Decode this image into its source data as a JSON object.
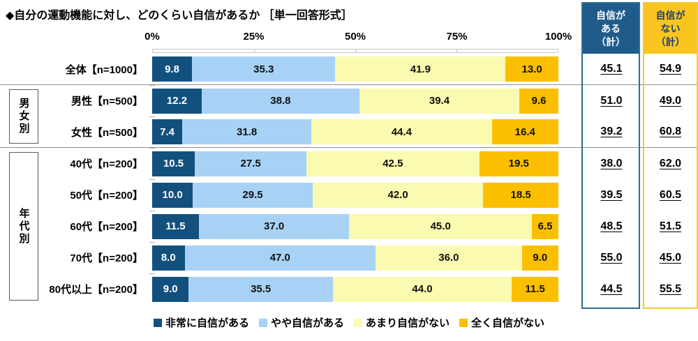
{
  "title": "◆自分の運動機能に対し、どのくらい自信があるか ［単一回答形式］",
  "axis_ticks": [
    "0%",
    "25%",
    "50%",
    "75%",
    "100%"
  ],
  "summary_columns": [
    {
      "title_lines": [
        "自信が",
        "ある",
        "（計）"
      ],
      "header_bg": "#1f5c8c",
      "header_text": "#ffffff",
      "border": "#2e6e96"
    },
    {
      "title_lines": [
        "自信が",
        "ない",
        "（計）"
      ],
      "header_bg": "#fac51e",
      "header_text": "#15406e",
      "border": "#f2ca30"
    }
  ],
  "groups": [
    {
      "label": "男女別",
      "start": 1,
      "end": 2
    },
    {
      "label": "年代別",
      "start": 3,
      "end": 7
    }
  ],
  "legend": [
    {
      "label": "非常に自信がある",
      "color": "#12517e"
    },
    {
      "label": "やや自信がある",
      "color": "#a8d2f5"
    },
    {
      "label": "あまり自信がない",
      "color": "#fafab0"
    },
    {
      "label": "全く自信がない",
      "color": "#fcbf00"
    }
  ],
  "rows": [
    {
      "label": "全体【n=1000】",
      "values": [
        "9.8",
        "35.3",
        "41.9",
        "13.0"
      ],
      "sum_yes": "45.1",
      "sum_no": "54.9"
    },
    {
      "label": "男性【n=500】",
      "values": [
        "12.2",
        "38.8",
        "39.4",
        "9.6"
      ],
      "sum_yes": "51.0",
      "sum_no": "49.0"
    },
    {
      "label": "女性【n=500】",
      "values": [
        "7.4",
        "31.8",
        "44.4",
        "16.4"
      ],
      "sum_yes": "39.2",
      "sum_no": "60.8"
    },
    {
      "label": "40代【n=200】",
      "values": [
        "10.5",
        "27.5",
        "42.5",
        "19.5"
      ],
      "sum_yes": "38.0",
      "sum_no": "62.0"
    },
    {
      "label": "50代【n=200】",
      "values": [
        "10.0",
        "29.5",
        "42.0",
        "18.5"
      ],
      "sum_yes": "39.5",
      "sum_no": "60.5"
    },
    {
      "label": "60代【n=200】",
      "values": [
        "11.5",
        "37.0",
        "45.0",
        "6.5"
      ],
      "sum_yes": "48.5",
      "sum_no": "51.5"
    },
    {
      "label": "70代【n=200】",
      "values": [
        "8.0",
        "47.0",
        "36.0",
        "9.0"
      ],
      "sum_yes": "55.0",
      "sum_no": "45.0"
    },
    {
      "label": "80代以上【n=200】",
      "values": [
        "9.0",
        "35.5",
        "44.0",
        "11.5"
      ],
      "sum_yes": "44.5",
      "sum_no": "55.5"
    }
  ],
  "chart_data": {
    "type": "bar",
    "subtype": "horizontal-stacked-100pct",
    "title": "◆自分の運動機能に対し、どのくらい自信があるか ［単一回答形式］",
    "categories": [
      "全体【n=1000】",
      "男性【n=500】",
      "女性【n=500】",
      "40代【n=200】",
      "50代【n=200】",
      "60代【n=200】",
      "70代【n=200】",
      "80代以上【n=200】"
    ],
    "category_groups": [
      {
        "label": "男女別",
        "categories": [
          "男性【n=500】",
          "女性【n=500】"
        ]
      },
      {
        "label": "年代別",
        "categories": [
          "40代【n=200】",
          "50代【n=200】",
          "60代【n=200】",
          "70代【n=200】",
          "80代以上【n=200】"
        ]
      }
    ],
    "series": [
      {
        "name": "非常に自信がある",
        "color": "#12517e",
        "values": [
          9.8,
          12.2,
          7.4,
          10.5,
          10.0,
          11.5,
          8.0,
          9.0
        ]
      },
      {
        "name": "やや自信がある",
        "color": "#a8d2f5",
        "values": [
          35.3,
          38.8,
          31.8,
          27.5,
          29.5,
          37.0,
          47.0,
          35.5
        ]
      },
      {
        "name": "あまり自信がない",
        "color": "#fafab0",
        "values": [
          41.9,
          39.4,
          44.4,
          42.5,
          42.0,
          45.0,
          36.0,
          44.0
        ]
      },
      {
        "name": "全く自信がない",
        "color": "#fcbf00",
        "values": [
          13.0,
          9.6,
          16.4,
          19.5,
          18.5,
          6.5,
          9.0,
          11.5
        ]
      }
    ],
    "totals": [
      {
        "name": "自信がある（計）",
        "values": [
          45.1,
          51.0,
          39.2,
          38.0,
          39.5,
          48.5,
          55.0,
          44.5
        ]
      },
      {
        "name": "自信がない（計）",
        "values": [
          54.9,
          49.0,
          60.8,
          62.0,
          60.5,
          51.5,
          45.0,
          55.5
        ]
      }
    ],
    "xlim": [
      0,
      100
    ],
    "x_ticks": [
      "0%",
      "25%",
      "50%",
      "75%",
      "100%"
    ],
    "legend_position": "bottom",
    "grid": false
  }
}
